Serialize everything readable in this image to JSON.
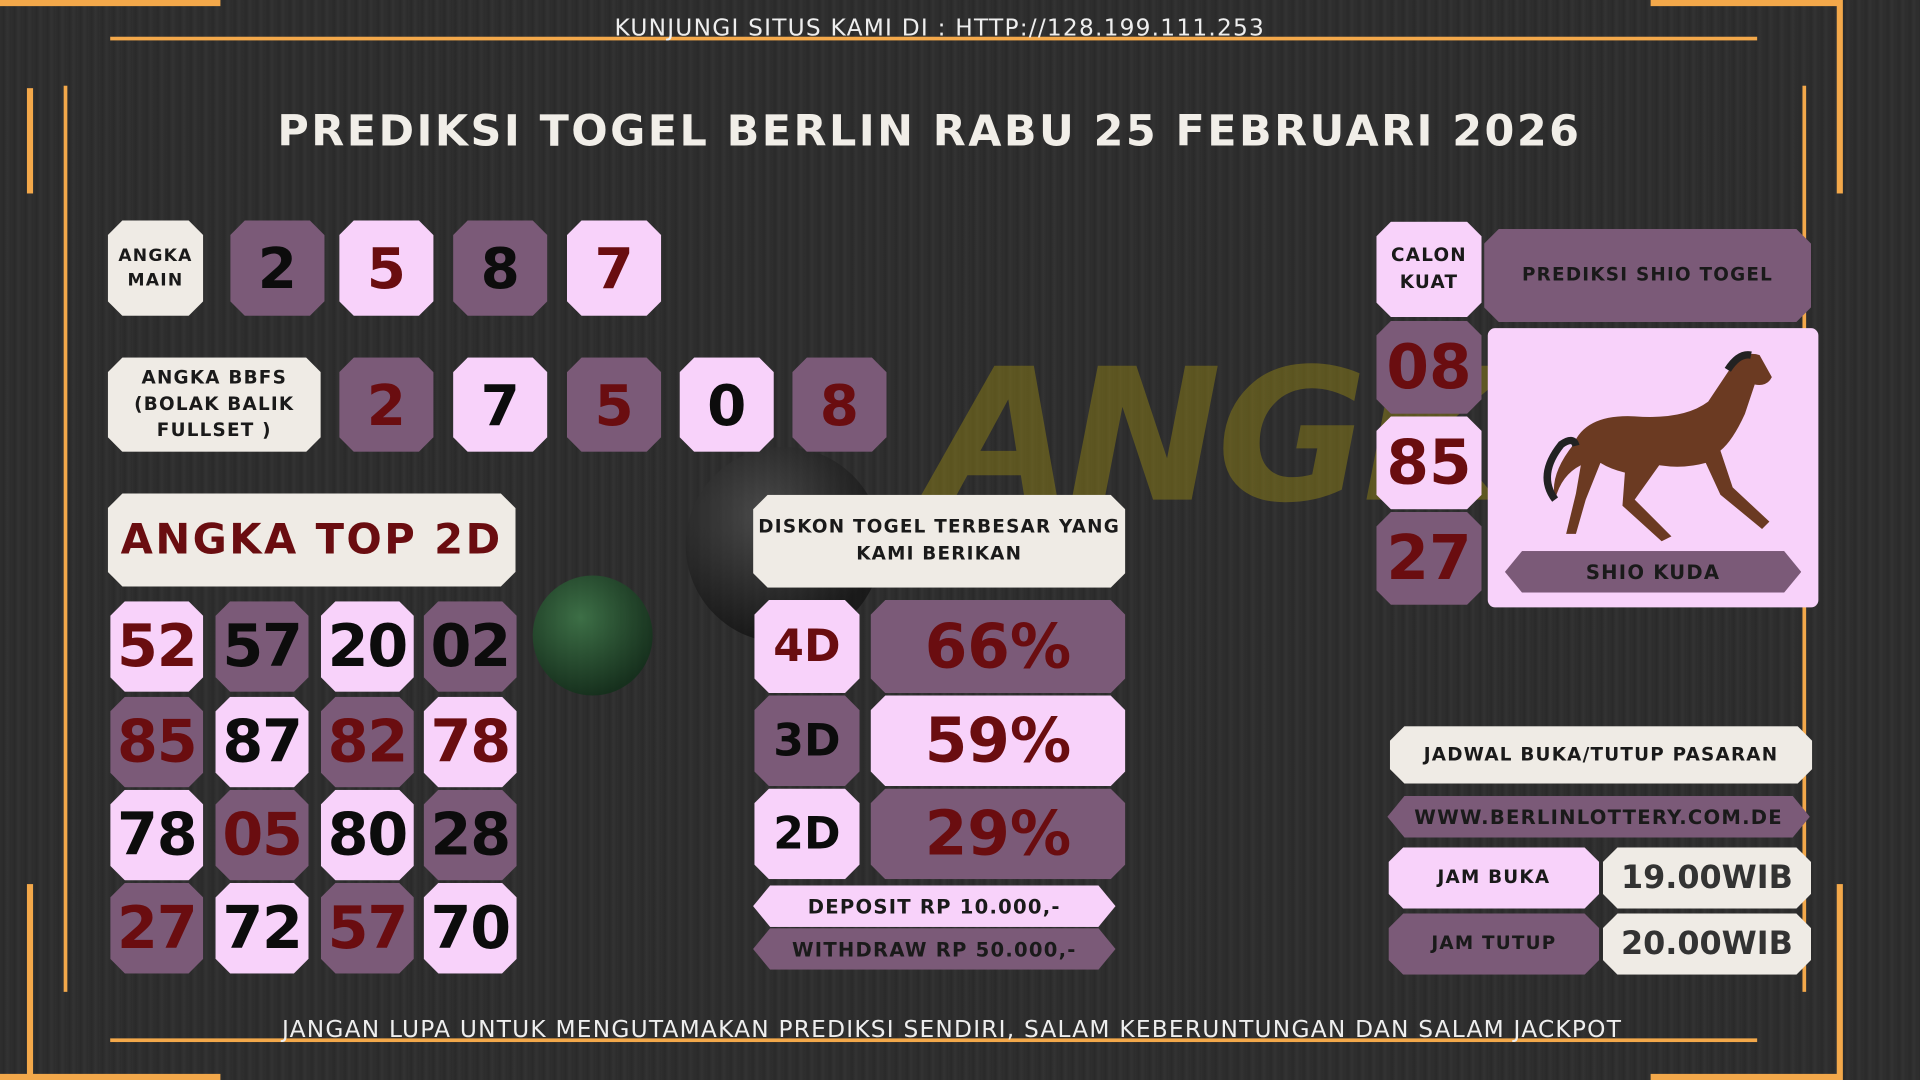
{
  "header_text": "KUNJUNGI SITUS KAMI DI : HTTP://128.199.111.253",
  "title": "PREDIKSI TOGEL BERLIN RABU 25 FEBRUARI 2026",
  "footer_text": "JANGAN LUPA UNTUK MENGUTAMAKAN PREDIKSI SENDIRI, SALAM KEBERUNTUNGAN DAN SALAM JACKPOT",
  "watermark": "ANGKA GAIB",
  "colors": {
    "purple": "#7b5a78",
    "pink": "#f8d2fa",
    "cream": "#efebe5",
    "red_text": "#6a0d10",
    "border": "#f3a84a"
  },
  "angka_main": {
    "label": "ANGKA MAIN",
    "digits": [
      "2",
      "5",
      "8",
      "7"
    ]
  },
  "bbfs": {
    "label": "ANGKA BBFS (BOLAK BALIK FULLSET )",
    "digits": [
      "2",
      "7",
      "5",
      "0",
      "8"
    ]
  },
  "top2d": {
    "label": "ANGKA TOP 2D",
    "rows": [
      [
        "52",
        "57",
        "20",
        "02"
      ],
      [
        "85",
        "87",
        "82",
        "78"
      ],
      [
        "78",
        "05",
        "80",
        "28"
      ],
      [
        "27",
        "72",
        "57",
        "70"
      ]
    ]
  },
  "diskon": {
    "label": "DISKON TOGEL TERBESAR YANG KAMI BERIKAN",
    "items": [
      {
        "type": "4D",
        "value": "66%"
      },
      {
        "type": "3D",
        "value": "59%"
      },
      {
        "type": "2D",
        "value": "29%"
      }
    ],
    "deposit": "DEPOSIT RP 10.000,-",
    "withdraw": "WITHDRAW RP 50.000,-"
  },
  "calon_kuat": {
    "label": "CALON KUAT",
    "numbers": [
      "08",
      "85",
      "27"
    ]
  },
  "shio": {
    "label": "PREDIKSI SHIO TOGEL",
    "name": "SHIO KUDA",
    "icon": "horse-icon"
  },
  "jadwal": {
    "label": "JADWAL BUKA/TUTUP PASARAN",
    "website": "WWW.BERLINLOTTERY.COM.DE",
    "buka_label": "JAM BUKA",
    "buka": "19.00WIB",
    "tutup_label": "JAM TUTUP",
    "tutup": "20.00WIB"
  }
}
